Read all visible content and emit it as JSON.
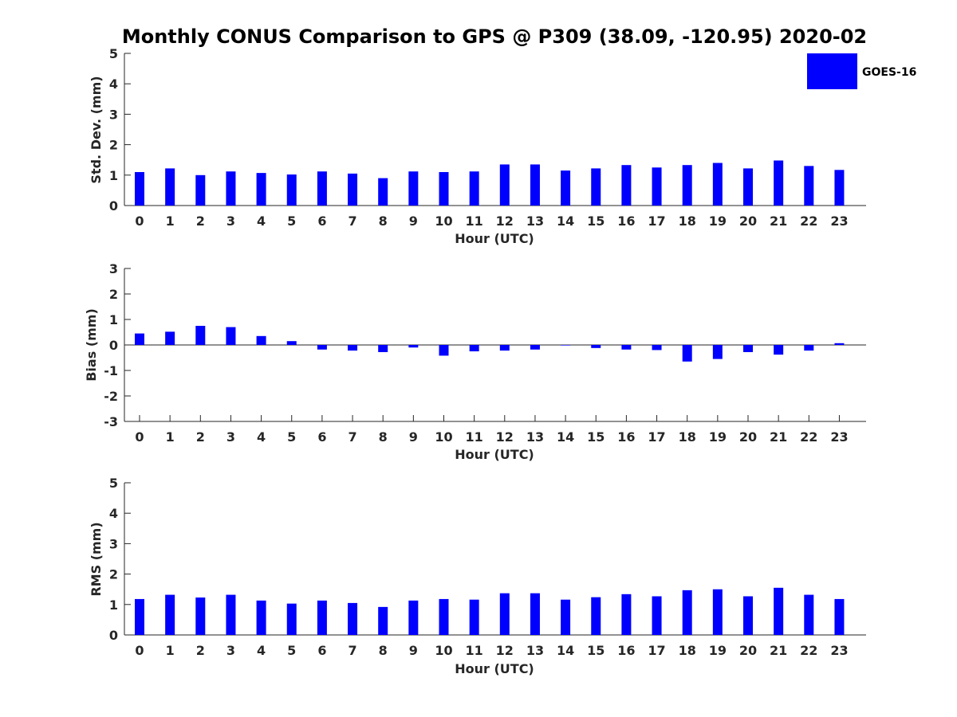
{
  "colors": {
    "bar": "#0000ff",
    "axis": "#262626",
    "background": "#ffffff"
  },
  "chart_data": {
    "type": "bar",
    "title": "Monthly CONUS Comparison to GPS @ P309 (38.09, -120.95) 2020-02",
    "legend": {
      "label": "GOES-16",
      "placement": "top-right"
    },
    "categories": [
      "0",
      "1",
      "2",
      "3",
      "4",
      "5",
      "6",
      "7",
      "8",
      "9",
      "10",
      "11",
      "12",
      "13",
      "14",
      "15",
      "16",
      "17",
      "18",
      "19",
      "20",
      "21",
      "22",
      "23"
    ],
    "panels": [
      {
        "id": "std",
        "xlabel": "Hour (UTC)",
        "ylabel": "Std. Dev. (mm)",
        "ylim": [
          0,
          5
        ],
        "yticks": [
          "0",
          "1",
          "2",
          "3",
          "4",
          "5"
        ],
        "series": [
          {
            "name": "GOES-16",
            "values": [
              1.1,
              1.22,
              1.0,
              1.12,
              1.07,
              1.02,
              1.12,
              1.05,
              0.9,
              1.12,
              1.1,
              1.12,
              1.35,
              1.35,
              1.15,
              1.22,
              1.33,
              1.25,
              1.33,
              1.4,
              1.22,
              1.48,
              1.3,
              1.17
            ]
          }
        ]
      },
      {
        "id": "bias",
        "xlabel": "Hour (UTC)",
        "ylabel": "Bias (mm)",
        "ylim": [
          -3,
          3
        ],
        "yticks": [
          "-3",
          "-2",
          "-1",
          "0",
          "1",
          "2",
          "3"
        ],
        "series": [
          {
            "name": "GOES-16",
            "values": [
              0.45,
              0.52,
              0.75,
              0.7,
              0.35,
              0.15,
              -0.18,
              -0.22,
              -0.28,
              -0.1,
              -0.42,
              -0.25,
              -0.22,
              -0.18,
              -0.02,
              -0.12,
              -0.18,
              -0.2,
              -0.65,
              -0.55,
              -0.28,
              -0.38,
              -0.22,
              0.07
            ]
          }
        ]
      },
      {
        "id": "rms",
        "xlabel": "Hour (UTC)",
        "ylabel": "RMS (mm)",
        "ylim": [
          0,
          5
        ],
        "yticks": [
          "0",
          "1",
          "2",
          "3",
          "4",
          "5"
        ],
        "series": [
          {
            "name": "GOES-16",
            "values": [
              1.18,
              1.32,
              1.23,
              1.32,
              1.13,
              1.03,
              1.13,
              1.05,
              0.92,
              1.13,
              1.18,
              1.16,
              1.37,
              1.37,
              1.16,
              1.24,
              1.34,
              1.27,
              1.47,
              1.5,
              1.27,
              1.55,
              1.32,
              1.18
            ]
          }
        ]
      }
    ]
  }
}
